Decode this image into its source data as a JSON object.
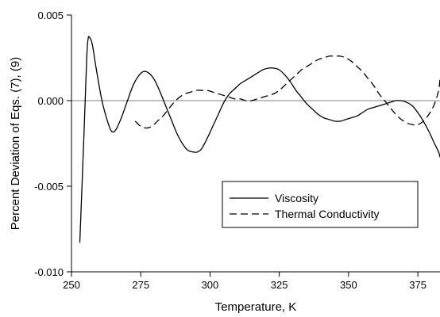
{
  "chart_data": {
    "type": "line",
    "title": "",
    "xlabel": "Temperature, K",
    "ylabel": "Percent Deviation of Eqs. (7), (9)",
    "xlim": [
      250,
      383
    ],
    "ylim": [
      -0.01,
      0.005
    ],
    "x_ticks": [
      250,
      275,
      300,
      325,
      350,
      375
    ],
    "x_tick_labels": [
      "250",
      "275",
      "300",
      "325",
      "350",
      "375"
    ],
    "y_ticks": [
      -0.01,
      -0.005,
      0.0,
      0.005
    ],
    "y_tick_labels": [
      "-0.010",
      "-0.005",
      "0.000",
      "0.005"
    ],
    "zero_line": true,
    "grid": false,
    "legend_position": "lower-right",
    "series": [
      {
        "name": "Viscosity",
        "style": "solid",
        "x": [
          253,
          254.5,
          255.5,
          256,
          256.5,
          257.5,
          259,
          261,
          263,
          264.5,
          266,
          268,
          270,
          272,
          274,
          276,
          278,
          280,
          282,
          284,
          286,
          288,
          290,
          292,
          294,
          295.5,
          297,
          299,
          301,
          303,
          305,
          307,
          309,
          311,
          313,
          315,
          317,
          319,
          321,
          323,
          325,
          327,
          329,
          331,
          333,
          335,
          337,
          339,
          341,
          343,
          345,
          347,
          349,
          351,
          353,
          355,
          357,
          359,
          361,
          363,
          365,
          367,
          369,
          371,
          373,
          375,
          377,
          379,
          381,
          382.5,
          383
        ],
        "values": [
          -0.0083,
          -0.002,
          0.0025,
          0.0036,
          0.0037,
          0.0033,
          0.0018,
          0.0,
          -0.0012,
          -0.0018,
          -0.0017,
          -0.001,
          -0.0001,
          0.0008,
          0.0014,
          0.0017,
          0.0016,
          0.0012,
          0.0005,
          -0.0003,
          -0.0011,
          -0.0019,
          -0.0025,
          -0.0029,
          -0.003,
          -0.003,
          -0.0028,
          -0.0022,
          -0.0015,
          -0.0008,
          -0.0001,
          0.0004,
          0.0007,
          0.001,
          0.0012,
          0.0014,
          0.0016,
          0.0018,
          0.0019,
          0.0019,
          0.0018,
          0.0015,
          0.0011,
          0.0006,
          0.0002,
          -0.0002,
          -0.0005,
          -0.0008,
          -0.001,
          -0.0011,
          -0.0012,
          -0.0012,
          -0.0011,
          -0.001,
          -0.0009,
          -0.0007,
          -0.0005,
          -0.0004,
          -0.0003,
          -0.0002,
          -0.0001,
          0.0,
          0.0,
          -0.0001,
          -0.0003,
          -0.0007,
          -0.0012,
          -0.0018,
          -0.0025,
          -0.003,
          -0.0033
        ]
      },
      {
        "name": "Thermal Conductivity",
        "style": "dashed",
        "x": [
          273,
          275,
          277,
          279,
          281,
          283,
          285,
          287,
          289,
          291,
          293,
          295,
          297,
          299,
          301,
          303,
          305,
          307,
          309,
          311,
          313,
          315,
          317,
          319,
          321,
          323,
          325,
          327,
          329,
          331,
          333,
          335,
          337,
          339,
          341,
          343,
          345,
          347,
          349,
          351,
          353,
          355,
          357,
          359,
          361,
          363,
          365,
          367,
          369,
          371,
          373,
          375,
          377,
          379,
          381,
          382.5,
          383
        ],
        "values": [
          -0.0012,
          -0.0015,
          -0.0016,
          -0.0015,
          -0.0012,
          -0.0009,
          -0.0005,
          -0.0001,
          0.0002,
          0.0004,
          0.0005,
          0.0006,
          0.0006,
          0.0006,
          0.0005,
          0.0004,
          0.0003,
          0.0002,
          0.0001,
          0.0001,
          0.0,
          0.0,
          0.0001,
          0.0002,
          0.0003,
          0.0004,
          0.0006,
          0.0009,
          0.0012,
          0.0015,
          0.0018,
          0.002,
          0.0022,
          0.0024,
          0.0025,
          0.0026,
          0.0026,
          0.0026,
          0.0025,
          0.0023,
          0.002,
          0.0017,
          0.0013,
          0.0009,
          0.0004,
          0.0,
          -0.0004,
          -0.0008,
          -0.0011,
          -0.0013,
          -0.0014,
          -0.0014,
          -0.0012,
          -0.0008,
          -0.0002,
          0.0006,
          0.0013
        ]
      }
    ]
  },
  "colors": {
    "line": "#000000",
    "zero_line": "#808080",
    "background": "#ffffff"
  }
}
